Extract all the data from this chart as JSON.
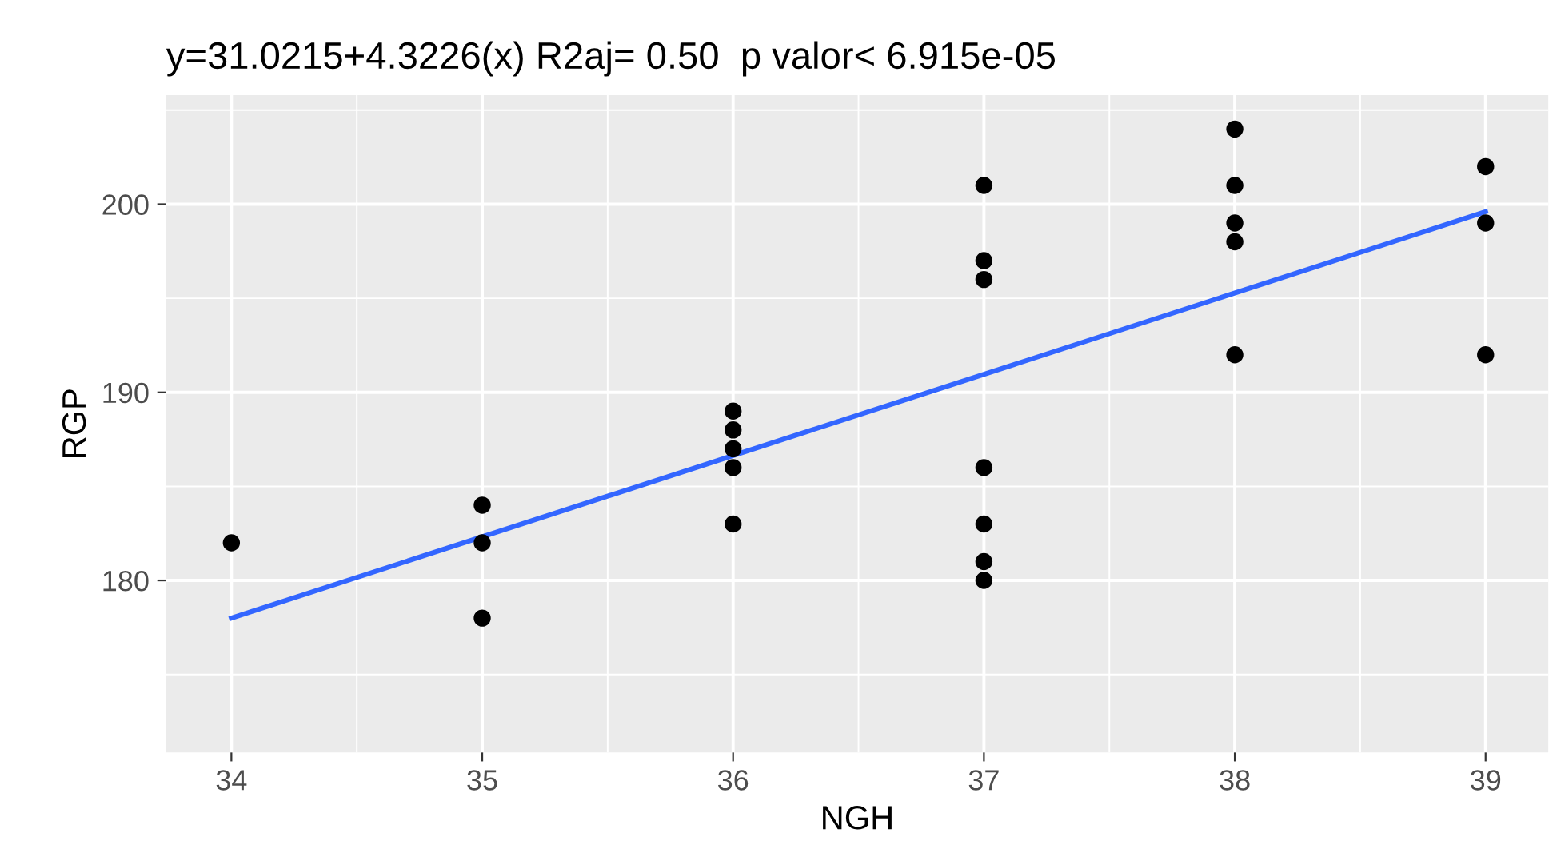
{
  "chart_data": {
    "type": "scatter",
    "title": "y=31.0215+4.3226(x) R2aj= 0.50  p valor< 6.915e-05",
    "xlabel": "NGH",
    "ylabel": "RGP",
    "series": [
      {
        "color": "#000000",
        "marker": "circle",
        "x": [
          34,
          35,
          35,
          35,
          36,
          36,
          36,
          36,
          36,
          37,
          37,
          37,
          37,
          37,
          37,
          37,
          38,
          38,
          38,
          38,
          38,
          39,
          39,
          39
        ],
        "values": [
          182,
          184,
          182,
          178,
          189,
          188,
          187,
          186,
          183,
          201,
          197,
          196,
          186,
          183,
          181,
          180,
          204,
          201,
          199,
          198,
          192,
          202,
          199,
          192
        ]
      },
      {
        "type": "line",
        "color": "#3366ff",
        "line_style": "solid",
        "x": [
          34,
          39
        ],
        "values": [
          178.0,
          199.6
        ]
      }
    ],
    "xlim": [
      33.74,
      39.25
    ],
    "ylim": [
      170.85,
      205.8
    ],
    "xticks": [
      34,
      35,
      36,
      37,
      38,
      39
    ],
    "yticks": [
      180,
      190,
      200
    ],
    "grid": true
  }
}
